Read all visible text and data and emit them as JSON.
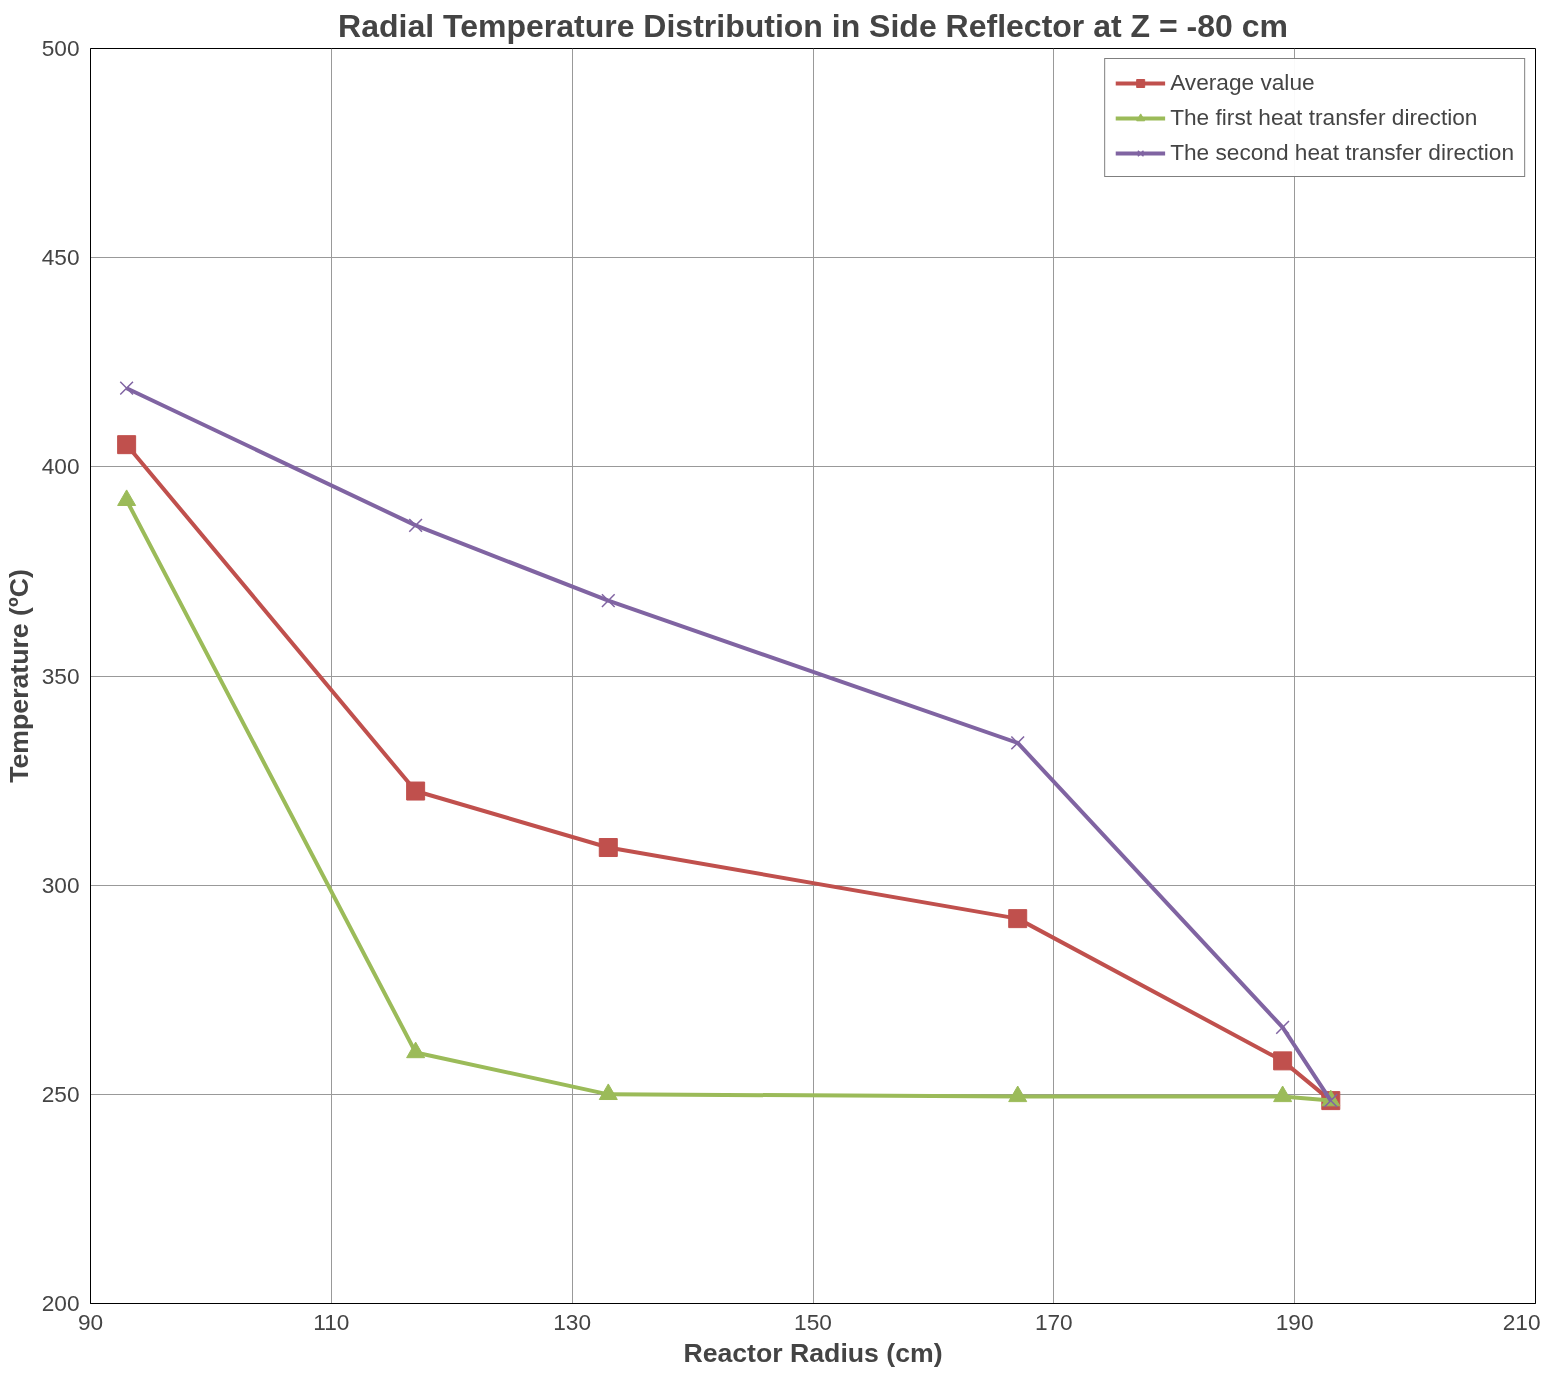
{
  "chart_data": {
    "type": "line",
    "title": "Radial Temperature Distribution in Side Reflector at Z = -80 cm",
    "xlabel": "Reactor Radius (cm)",
    "ylabel": "Temperature (ºC)",
    "x": [
      93,
      117,
      133,
      167,
      189,
      193
    ],
    "series": [
      {
        "name": "Average value",
        "color": "#c0504d",
        "marker": "square",
        "values": [
          405.3,
          322.5,
          309,
          292,
          258,
          248.5
        ]
      },
      {
        "name": "The first heat transfer direction",
        "color": "#9bbb59",
        "marker": "triangle",
        "values": [
          392,
          260,
          250,
          249.5,
          249.5,
          248.5
        ]
      },
      {
        "name": "The second heat transfer direction",
        "color": "#8064a2",
        "marker": "cross",
        "values": [
          418.8,
          386,
          368,
          334,
          266,
          248.5
        ]
      }
    ],
    "xlim": [
      90,
      210
    ],
    "xticks": [
      90,
      110,
      130,
      150,
      170,
      190,
      210
    ],
    "ylim": [
      200,
      500
    ],
    "yticks": [
      200,
      250,
      300,
      350,
      400,
      450,
      500
    ],
    "grid": true,
    "legend": "top right",
    "line_style": "solid"
  }
}
